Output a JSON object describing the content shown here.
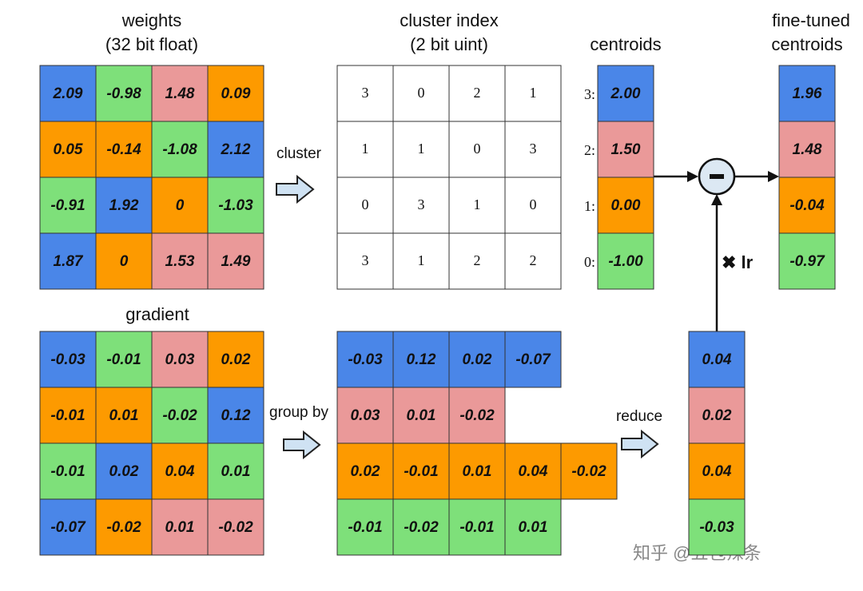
{
  "palette": [
    "#7ee07a",
    "#fd9a00",
    "#ea9999",
    "#4a86e8"
  ],
  "weights": {
    "title": "weights",
    "subtitle": "(32 bit float)",
    "rows": [
      [
        "2.09",
        "-0.98",
        "1.48",
        "0.09"
      ],
      [
        "0.05",
        "-0.14",
        "-1.08",
        "2.12"
      ],
      [
        "-0.91",
        "1.92",
        "0",
        "-1.03"
      ],
      [
        "1.87",
        "0",
        "1.53",
        "1.49"
      ]
    ]
  },
  "cluster_index": {
    "title": "cluster index",
    "subtitle": "(2 bit uint)",
    "rows": [
      [
        3,
        0,
        2,
        1
      ],
      [
        1,
        1,
        0,
        3
      ],
      [
        0,
        3,
        1,
        0
      ],
      [
        3,
        1,
        2,
        2
      ]
    ]
  },
  "centroids": {
    "title": "centroids",
    "labels": [
      "3:",
      "2:",
      "1:",
      "0:"
    ],
    "values": [
      "2.00",
      "1.50",
      "0.00",
      "-1.00"
    ]
  },
  "fine_tuned": {
    "title": [
      "fine-tuned",
      "centroids"
    ],
    "values": [
      "1.96",
      "1.48",
      "-0.04",
      "-0.97"
    ]
  },
  "gradient": {
    "title": "gradient",
    "rows": [
      [
        "-0.03",
        "-0.01",
        "0.03",
        "0.02"
      ],
      [
        "-0.01",
        "0.01",
        "-0.02",
        "0.12"
      ],
      [
        "-0.01",
        "0.02",
        "0.04",
        "0.01"
      ],
      [
        "-0.07",
        "-0.02",
        "0.01",
        "-0.02"
      ]
    ]
  },
  "grouped": {
    "rows": [
      [
        "-0.03",
        "0.12",
        "0.02",
        "-0.07"
      ],
      [
        "0.03",
        "0.01",
        "-0.02"
      ],
      [
        "0.02",
        "-0.01",
        "0.01",
        "0.04",
        "-0.02"
      ],
      [
        "-0.01",
        "-0.02",
        "-0.01",
        "0.01"
      ]
    ]
  },
  "reduced": {
    "values": [
      "0.04",
      "0.02",
      "0.04",
      "-0.03"
    ]
  },
  "labels": {
    "cluster": "cluster",
    "group_by": "group by",
    "reduce": "reduce",
    "lr": "✖ lr",
    "minus": "-"
  },
  "watermark": "知乎 @五包辣条"
}
